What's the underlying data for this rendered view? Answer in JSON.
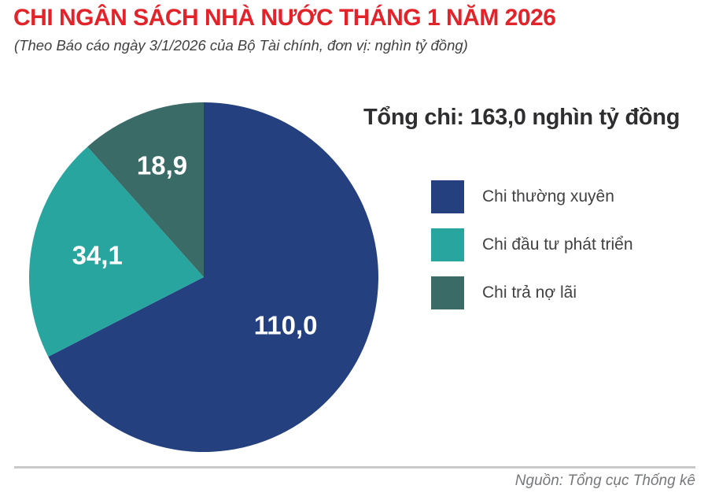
{
  "header": {
    "title": "CHI NGÂN SÁCH NHÀ NƯỚC THÁNG 1 NĂM 2026",
    "subtitle": "(Theo Báo cáo ngày 3/1/2026 của Bộ Tài chính, đơn vị: nghìn tỷ đồng)"
  },
  "total_label": "Tổng chi: 163,0 nghìn tỷ đồng",
  "chart_data": {
    "type": "pie",
    "title": "Tổng chi: 163,0 nghìn tỷ đồng",
    "total": 163.0,
    "unit": "nghìn tỷ đồng",
    "start_angle_deg": 0,
    "direction": "clockwise",
    "legend_position": "right",
    "slices": [
      {
        "label": "Chi thường xuyên",
        "value": 110.0,
        "display": "110,0",
        "color": "#24407E"
      },
      {
        "label": "Chi đầu tư phát triển",
        "value": 34.1,
        "display": "34,1",
        "color": "#29A5A0"
      },
      {
        "label": "Chi trả nợ lãi",
        "value": 18.9,
        "display": "18,9",
        "color": "#3A6B67"
      }
    ]
  },
  "footer": {
    "source": "Nguồn: Tổng cục Thống kê"
  },
  "colors": {
    "title_red": "#E2242A",
    "subtitle_gray": "#414042",
    "total_dark": "#2E2E30",
    "legend_text": "#414042",
    "source_gray": "#77787B",
    "divider_gray": "#C9C9C9",
    "background": "#FFFFFF"
  }
}
